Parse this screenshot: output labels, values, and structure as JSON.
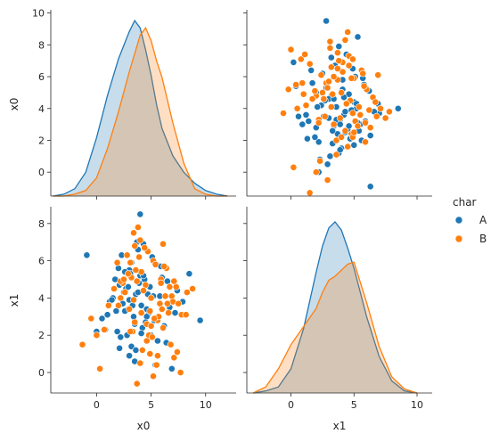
{
  "chart_data": {
    "type": "scatter",
    "variables": [
      "x0",
      "x1"
    ],
    "legend": {
      "title": "char",
      "placement": "right",
      "entries": [
        {
          "label": "A",
          "color": "#1f77b4"
        },
        {
          "label": "B",
          "color": "#ff7f0e"
        }
      ]
    },
    "axes": {
      "x0": {
        "ticks": [
          0,
          2,
          4,
          6,
          8,
          10
        ],
        "range": [
          -1.5,
          10.2
        ]
      },
      "x1": {
        "ticks": [
          0,
          2,
          4,
          6,
          8
        ],
        "range": [
          -1.1,
          8.9
        ]
      },
      "x0_bottom": {
        "ticks": [
          0,
          5,
          10
        ],
        "range": [
          -4.2,
          12.8
        ]
      },
      "x1_bottom": {
        "ticks": [
          0,
          5,
          10
        ],
        "range": [
          -3.5,
          11.2
        ]
      }
    },
    "kde": {
      "x0": {
        "x": [
          -4,
          -3,
          -2,
          -1,
          0,
          1,
          2,
          3,
          3.5,
          4,
          4.5,
          5,
          5.5,
          6,
          7,
          8,
          9,
          10,
          11,
          12
        ],
        "A": [
          0,
          0.1,
          0.4,
          1.3,
          3.2,
          5.5,
          7.5,
          9.0,
          9.6,
          9.2,
          8.0,
          6.6,
          5.0,
          3.7,
          2.2,
          1.3,
          0.7,
          0.3,
          0.1,
          0
        ],
        "B": [
          0,
          0,
          0.1,
          0.3,
          1.0,
          2.6,
          4.6,
          6.8,
          7.8,
          8.8,
          9.2,
          8.5,
          7.4,
          6.5,
          4.0,
          1.8,
          0.4,
          0.1,
          0,
          0
        ]
      },
      "x1": {
        "x": [
          -3,
          -2,
          -1,
          0,
          1,
          2,
          2.5,
          3,
          3.5,
          4,
          4.5,
          5,
          6,
          7,
          8,
          9,
          10
        ],
        "A": [
          0,
          0.1,
          0.3,
          1.2,
          3.2,
          6.0,
          7.3,
          8.2,
          8.5,
          8.1,
          7.2,
          6.2,
          3.8,
          1.8,
          0.6,
          0.1,
          0
        ],
        "B": [
          0,
          0.3,
          1.2,
          2.4,
          3.3,
          4.2,
          5.0,
          5.6,
          5.8,
          6.1,
          6.4,
          6.5,
          4.5,
          2.3,
          0.8,
          0.2,
          0
        ]
      }
    },
    "points": {
      "A": {
        "x0": [
          3.0,
          4.0,
          2.1,
          5.5,
          3.6,
          1.2,
          4.8,
          2.7,
          3.3,
          6.2,
          0.5,
          2.9,
          4.4,
          5.1,
          3.8,
          1.9,
          2.4,
          3.1,
          4.6,
          5.8,
          7.4,
          3.5,
          2.2,
          4.1,
          1.5,
          6.0,
          3.9,
          2.6,
          5.3,
          4.3,
          1.0,
          3.2,
          6.7,
          2.8,
          4.9,
          3.7,
          5.6,
          2.0,
          4.2,
          3.4,
          8.5,
          7.9,
          0.8,
          6.5,
          3.0,
          5.0,
          2.3,
          4.7,
          1.7,
          3.6,
          9.5,
          7.2,
          2.5,
          4.0,
          5.4,
          3.3,
          6.4,
          1.4,
          4.5,
          2.9,
          3.8,
          5.9,
          2.1,
          4.1,
          3.2,
          -0.9,
          0.0,
          4.6,
          2.6,
          3.5,
          5.2,
          6.9,
          1.8,
          4.3,
          3.0
        ],
        "x1": [
          5.5,
          5.2,
          4.7,
          5.8,
          4.2,
          3.8,
          3.2,
          4.5,
          3.9,
          2.5,
          2.9,
          3.4,
          5.0,
          6.2,
          4.3,
          2.2,
          3.7,
          5.3,
          3.0,
          4.1,
          4.4,
          2.6,
          1.9,
          3.6,
          4.0,
          5.1,
          4.8,
          3.3,
          2.8,
          6.9,
          3.1,
          1.4,
          3.5,
          2.0,
          4.6,
          7.0,
          1.7,
          5.6,
          2.4,
          3.0,
          5.3,
          3.8,
          2.3,
          4.9,
          0.9,
          2.0,
          6.3,
          4.2,
          5.0,
          1.2,
          2.8,
          3.2,
          4.3,
          8.5,
          0.4,
          3.6,
          1.6,
          3.9,
          2.7,
          4.6,
          6.6,
          5.7,
          1.3,
          2.1,
          5.9,
          6.3,
          2.2,
          3.4,
          5.4,
          0.6,
          4.1,
          0.2,
          3.3,
          5.2,
          3.9
        ]
      },
      "B": {
        "x0": [
          4.5,
          3.2,
          5.8,
          2.6,
          6.4,
          4.9,
          3.7,
          5.2,
          6.9,
          2.0,
          4.1,
          5.6,
          7.3,
          3.4,
          4.7,
          6.1,
          2.9,
          5.0,
          3.9,
          6.6,
          4.3,
          5.4,
          7.8,
          2.4,
          4.8,
          3.5,
          6.0,
          5.9,
          1.6,
          4.6,
          6.3,
          3.1,
          5.1,
          7.0,
          4.0,
          2.2,
          5.7,
          3.6,
          6.8,
          4.4,
          5.3,
          8.3,
          1.1,
          4.2,
          6.2,
          3.3,
          7.5,
          5.5,
          2.8,
          4.9,
          6.7,
          3.8,
          5.0,
          7.1,
          0.3,
          -1.3,
          2.2,
          3.1,
          4.1,
          5.9,
          6.1,
          3.5,
          7.7,
          8.2,
          4.6,
          1.9,
          3.0,
          2.5,
          3.4,
          4.0,
          3.7,
          7.4,
          8.8,
          6.5,
          5.6,
          0.7,
          0.0,
          -0.5,
          5.2,
          7.1
        ],
        "x1": [
          4.7,
          5.1,
          3.7,
          4.3,
          5.6,
          3.3,
          4.9,
          6.0,
          4.1,
          3.6,
          5.4,
          2.8,
          4.6,
          3.9,
          6.5,
          2.4,
          5.3,
          4.0,
          6.2,
          3.2,
          4.4,
          5.8,
          3.1,
          4.8,
          2.0,
          6.8,
          3.4,
          5.0,
          4.5,
          2.6,
          4.1,
          5.9,
          1.9,
          3.8,
          7.1,
          4.9,
          3.0,
          5.5,
          1.5,
          6.7,
          2.9,
          4.3,
          3.6,
          1.2,
          5.7,
          2.2,
          3.7,
          0.4,
          6.3,
          1.0,
          4.6,
          7.8,
          2.5,
          0.8,
          0.2,
          1.5,
          4.0,
          2.2,
          3.2,
          4.8,
          6.9,
          2.7,
          0.0,
          3.1,
          1.7,
          5.9,
          3.4,
          5.0,
          7.5,
          0.5,
          -0.6,
          1.1,
          4.5,
          3.7,
          0.9,
          2.3,
          2.0,
          2.9,
          -0.2,
          4.9
        ]
      }
    }
  }
}
